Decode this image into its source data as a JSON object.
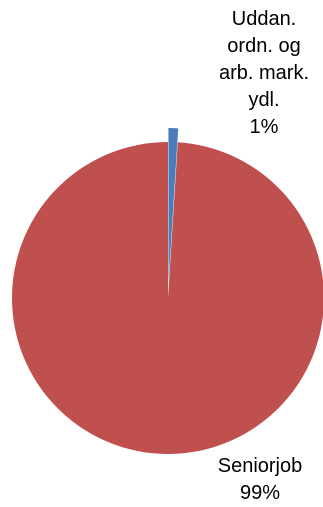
{
  "chart_data": {
    "type": "pie",
    "categories": [
      "Uddan. ordn. og arb. mark. ydl.",
      "Seniorjob"
    ],
    "values": [
      1,
      99
    ],
    "colors": [
      "#4a7ebb",
      "#c0504d"
    ],
    "legend": "none",
    "labels": [
      {
        "lines": [
          "Uddan.",
          "ordn. og",
          "arb. mark.",
          "ydl.",
          "1%"
        ]
      },
      {
        "lines": [
          "Seniorjob",
          "99%"
        ]
      }
    ]
  }
}
